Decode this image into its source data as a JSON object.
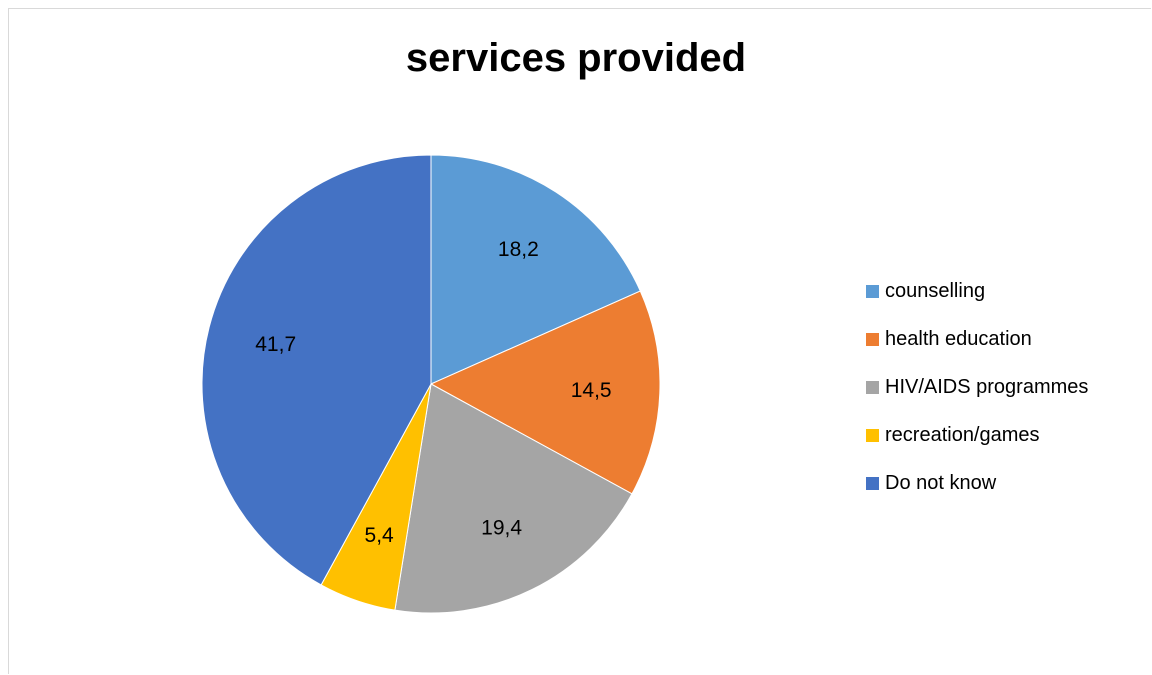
{
  "chart_data": {
    "type": "pie",
    "title": "services provided",
    "categories": [
      "counselling",
      "health education",
      "HIV/AIDS programmes",
      "recreation/games",
      "Do not know"
    ],
    "values": [
      18.2,
      14.5,
      19.4,
      5.4,
      41.7
    ],
    "data_labels": [
      "18,2",
      "14,5",
      "19,4",
      "5,4",
      "41,7"
    ],
    "colors": [
      "#5B9BD5",
      "#ED7D31",
      "#A5A5A5",
      "#FFC000",
      "#4472C4"
    ],
    "start_angle": "12 o'clock",
    "direction": "clockwise",
    "legend_position": "right"
  }
}
